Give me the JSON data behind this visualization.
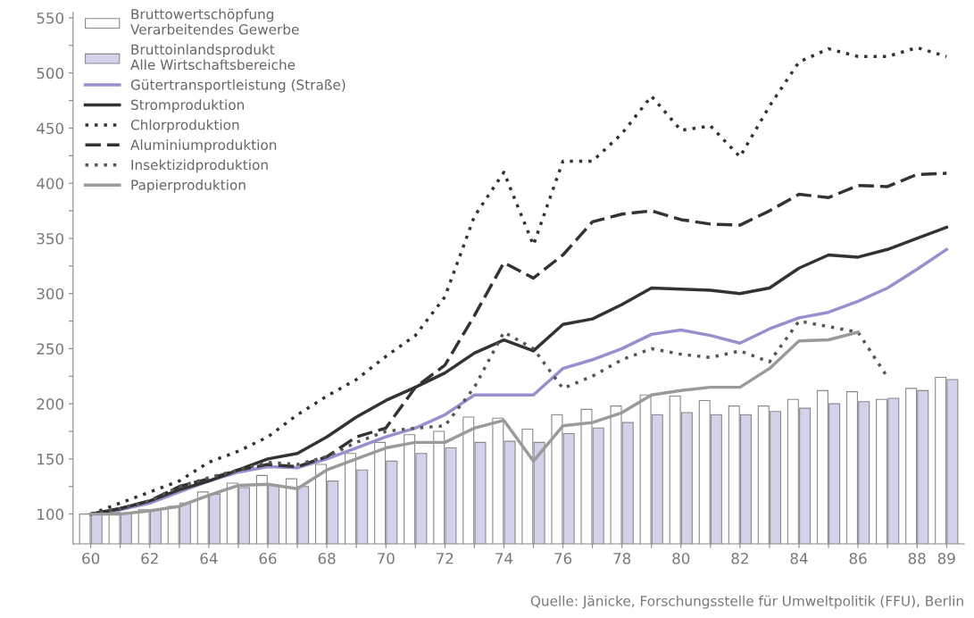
{
  "chart_data": {
    "type": "line",
    "categories": [
      "60",
      null,
      "62",
      null,
      "64",
      null,
      "66",
      null,
      "68",
      null,
      "70",
      null,
      "72",
      null,
      "74",
      null,
      "76",
      null,
      "78",
      null,
      "80",
      null,
      "82",
      null,
      "84",
      null,
      "86",
      null,
      "88",
      "89"
    ],
    "series": [
      {
        "name": "Bruttowertschöpfung\nVerarbeitendes Gewerbe",
        "type": "bar",
        "color": "#ffffff",
        "values": [
          100,
          102,
          104,
          107,
          120,
          128,
          135,
          132,
          145,
          155,
          165,
          172,
          175,
          188,
          187,
          177,
          190,
          195,
          198,
          208,
          207,
          203,
          198,
          198,
          204,
          212,
          211,
          204,
          214,
          224
        ]
      },
      {
        "name": "Bruttoinlandsprodukt\nAlle Wirtschaftsbereiche",
        "type": "bar",
        "color": "#d2d2ea",
        "values": [
          100,
          101,
          104,
          110,
          118,
          124,
          126,
          125,
          130,
          140,
          148,
          155,
          160,
          165,
          166,
          165,
          173,
          178,
          183,
          190,
          192,
          190,
          190,
          193,
          196,
          200,
          202,
          205,
          212,
          222
        ]
      },
      {
        "name": "Gütertransportleistung (Straße)",
        "color": "#9690cc",
        "line_style": "solid",
        "values": [
          100,
          104,
          110,
          120,
          130,
          138,
          143,
          142,
          150,
          160,
          170,
          178,
          190,
          208,
          208,
          208,
          232,
          240,
          250,
          263,
          267,
          262,
          255,
          268,
          278,
          283,
          293,
          305,
          322,
          340
        ]
      },
      {
        "name": "Stromproduktion",
        "color": "#333333",
        "line_style": "solid",
        "values": [
          100,
          105,
          112,
          122,
          130,
          140,
          150,
          155,
          170,
          188,
          203,
          215,
          228,
          246,
          258,
          248,
          272,
          277,
          290,
          305,
          304,
          303,
          300,
          305,
          323,
          335,
          333,
          340,
          350,
          360
        ]
      },
      {
        "name": "Chlorproduktion",
        "color": "#333333",
        "line_style": "dotted",
        "values": [
          100,
          110,
          120,
          130,
          147,
          157,
          170,
          190,
          207,
          222,
          243,
          262,
          297,
          370,
          410,
          344,
          420,
          420,
          445,
          479,
          448,
          452,
          424,
          470,
          510,
          522,
          515,
          515,
          523,
          515
        ]
      },
      {
        "name": "Aluminiumproduktion",
        "color": "#333333",
        "line_style": "dashed",
        "values": [
          100,
          105,
          112,
          125,
          132,
          140,
          145,
          143,
          152,
          170,
          178,
          215,
          235,
          280,
          328,
          314,
          335,
          365,
          372,
          375,
          367,
          363,
          362,
          375,
          390,
          387,
          398,
          397,
          408,
          409
        ]
      },
      {
        "name": "Insektizidproduktion",
        "color": "#555555",
        "line_style": "dotted",
        "values": [
          100,
          105,
          112,
          125,
          133,
          140,
          147,
          145,
          152,
          165,
          175,
          178,
          180,
          215,
          265,
          250,
          214,
          225,
          240,
          250,
          245,
          242,
          248,
          238,
          275,
          270,
          265,
          224,
          null,
          null
        ]
      },
      {
        "name": "Papierproduktion",
        "color": "#9a9a9a",
        "line_style": "solid",
        "values": [
          100,
          100,
          103,
          107,
          117,
          126,
          127,
          123,
          140,
          150,
          160,
          165,
          165,
          178,
          185,
          148,
          180,
          183,
          192,
          208,
          212,
          215,
          215,
          232,
          257,
          258,
          265,
          null,
          null,
          null
        ]
      }
    ],
    "ylim": [
      73,
      555
    ],
    "yticks": [
      100,
      {
        "value": 125,
        "label": null
      },
      150,
      {
        "value": 175,
        "label": null
      },
      200,
      {
        "value": 225,
        "label": null
      },
      250,
      {
        "value": 275,
        "label": null
      },
      300,
      {
        "value": 325,
        "label": null
      },
      350,
      {
        "value": 375,
        "label": null
      },
      400,
      {
        "value": 425,
        "label": null
      },
      450,
      {
        "value": 475,
        "label": null
      },
      500,
      {
        "value": 525,
        "label": null
      },
      550
    ],
    "grid": false,
    "legend": "top left",
    "annotations": [
      "Quelle: Jänicke, Forschungsstelle für Umweltpolitik (FFU), Berlin"
    ]
  }
}
